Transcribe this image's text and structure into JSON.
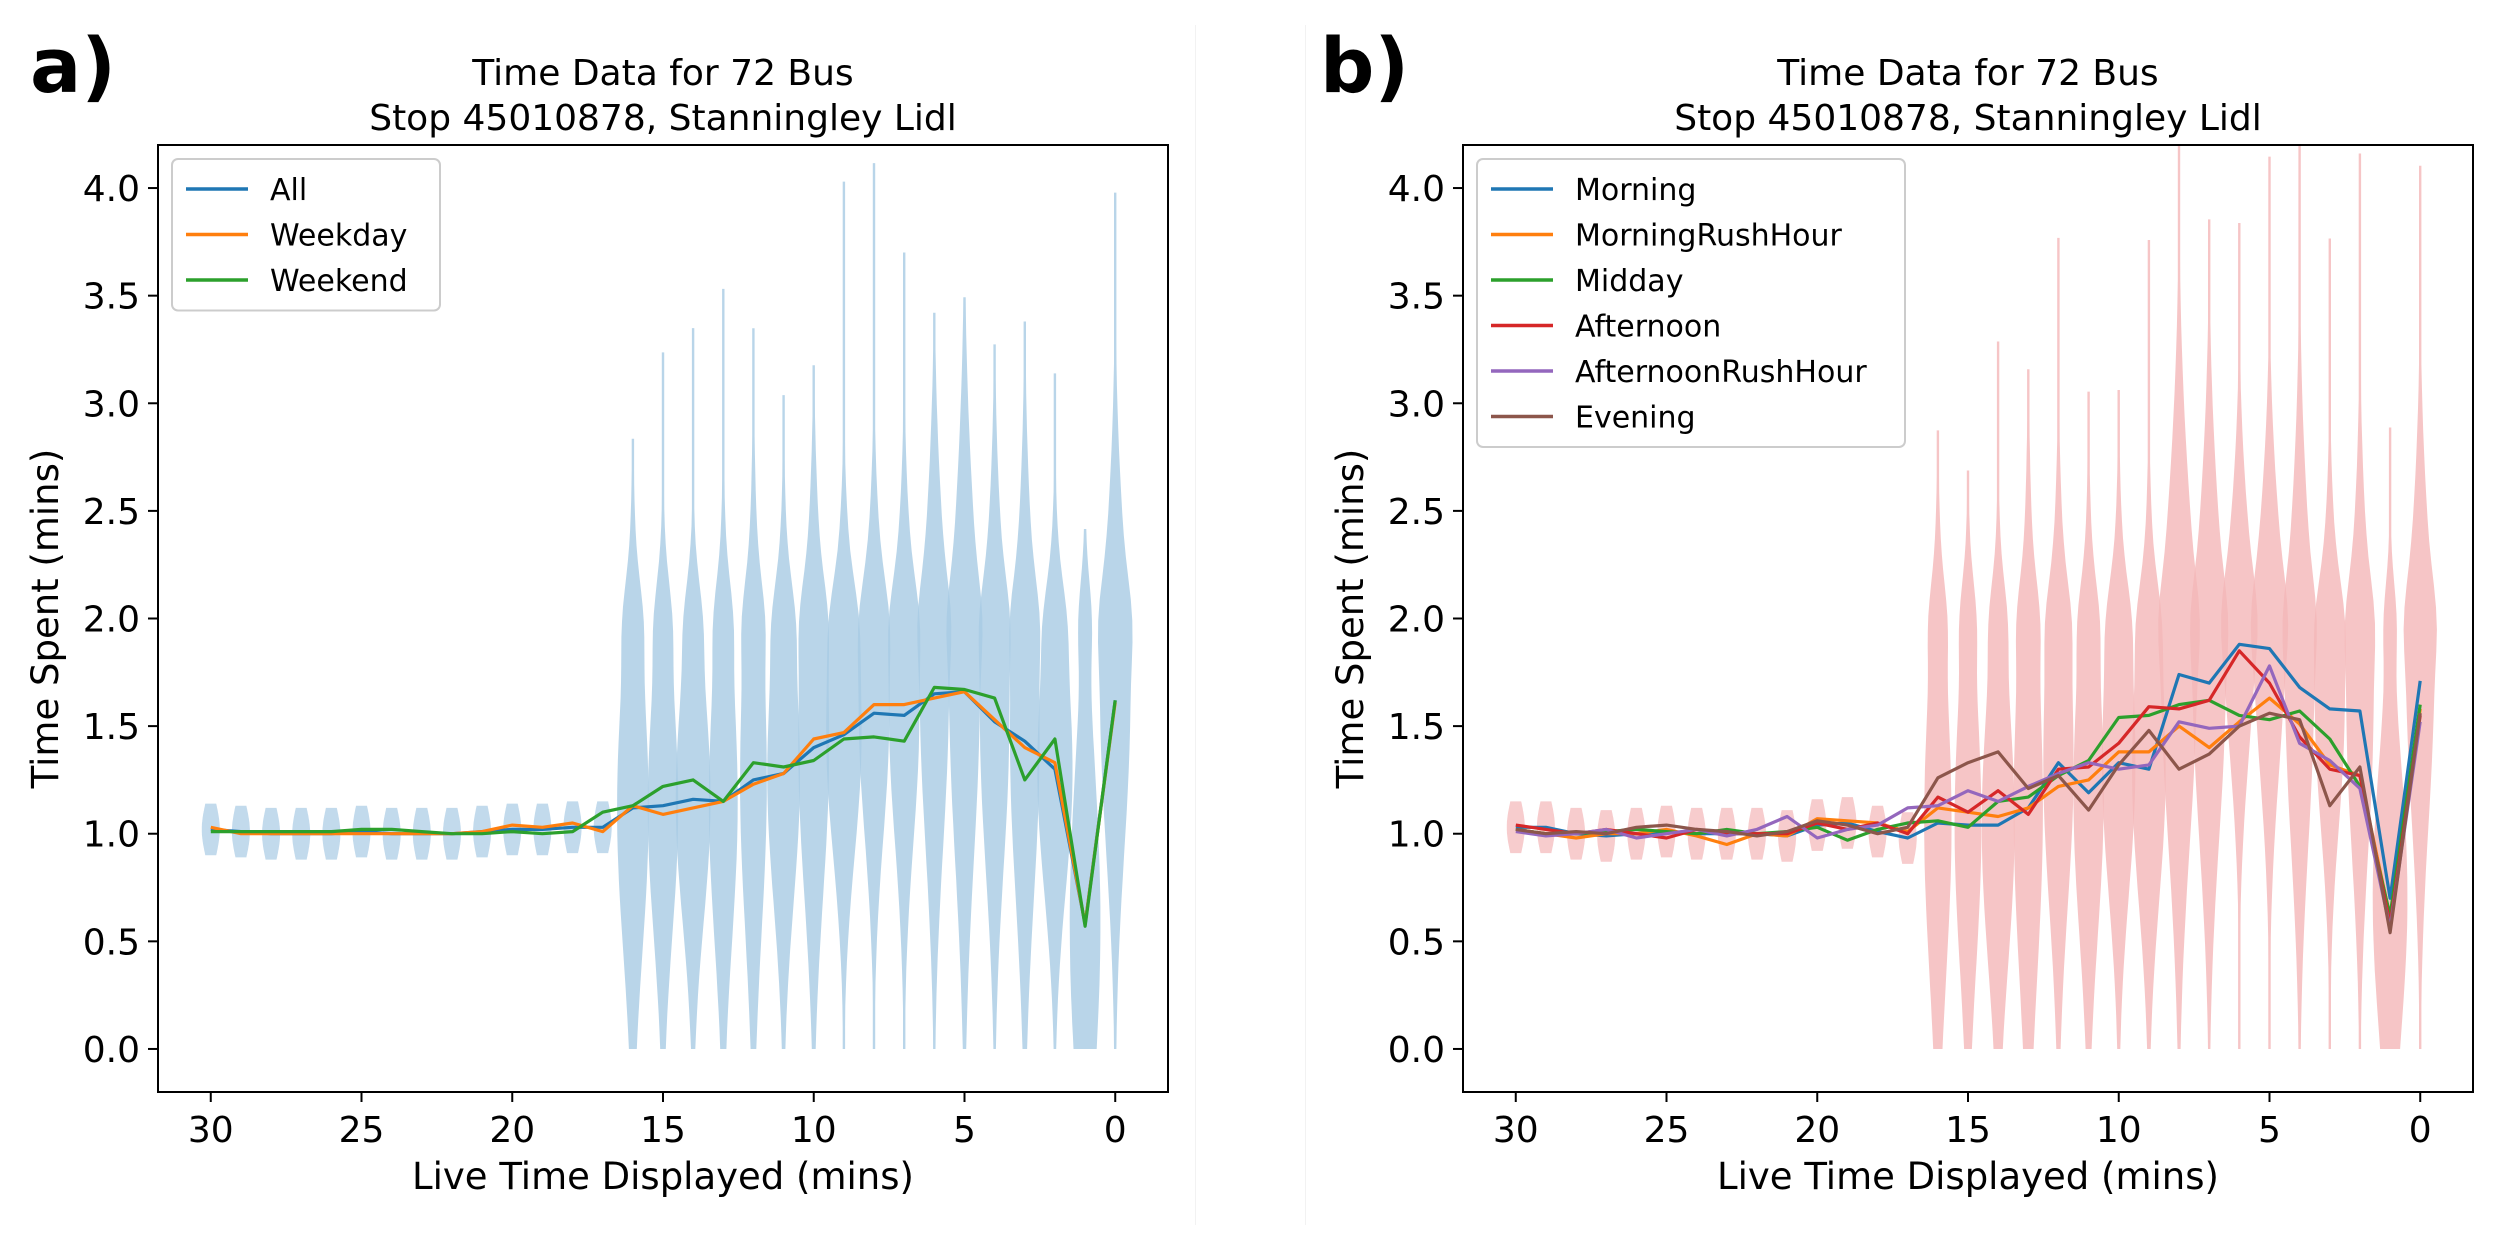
{
  "panels": [
    {
      "panel_label": "a)",
      "violin_color": "#a8cbe4",
      "chart_data": {
        "type": "line",
        "title": "Time Data for 72 Bus\nStop 45010878, Stanningley Lidl",
        "xlabel": "Live Time Displayed (mins)",
        "ylabel": "Time Spent (mins)",
        "xlim": [
          31.75,
          -1.75
        ],
        "ylim": [
          -0.2,
          4.2
        ],
        "x_ticks": [
          30,
          25,
          20,
          15,
          10,
          5,
          0
        ],
        "y_ticks": [
          0.0,
          0.5,
          1.0,
          1.5,
          2.0,
          2.5,
          3.0,
          3.5,
          4.0
        ],
        "legend_position": "upper-left",
        "x": [
          30,
          29,
          28,
          27,
          26,
          25,
          24,
          23,
          22,
          21,
          20,
          19,
          18,
          17,
          16,
          15,
          14,
          13,
          12,
          11,
          10,
          9,
          8,
          7,
          6,
          5,
          4,
          3,
          2,
          1,
          0
        ],
        "series": [
          {
            "name": "All",
            "color": "#1f77b4",
            "values": [
              1.02,
              1.01,
              1.0,
              1.0,
              1.0,
              1.01,
              1.0,
              1.0,
              1.0,
              1.01,
              1.02,
              1.02,
              1.03,
              1.03,
              1.12,
              1.13,
              1.16,
              1.15,
              1.25,
              1.28,
              1.4,
              1.46,
              1.56,
              1.55,
              1.65,
              1.66,
              1.52,
              1.43,
              1.3,
              0.58,
              1.62
            ]
          },
          {
            "name": "Weekday",
            "color": "#ff7f0e",
            "values": [
              1.03,
              1.0,
              1.0,
              1.0,
              1.0,
              1.0,
              1.0,
              1.0,
              1.0,
              1.01,
              1.04,
              1.03,
              1.05,
              1.01,
              1.13,
              1.09,
              1.12,
              1.15,
              1.23,
              1.28,
              1.44,
              1.47,
              1.6,
              1.6,
              1.63,
              1.66,
              1.53,
              1.4,
              1.33,
              0.58,
              1.61
            ]
          },
          {
            "name": "Weekend",
            "color": "#2ca02c",
            "values": [
              1.01,
              1.01,
              1.01,
              1.01,
              1.01,
              1.02,
              1.02,
              1.01,
              1.0,
              1.0,
              1.01,
              1.0,
              1.01,
              1.1,
              1.13,
              1.22,
              1.25,
              1.15,
              1.33,
              1.31,
              1.34,
              1.44,
              1.45,
              1.43,
              1.68,
              1.67,
              1.63,
              1.25,
              1.44,
              0.57,
              1.62
            ]
          }
        ]
      }
    },
    {
      "panel_label": "b)",
      "violin_color": "#f4b6b8",
      "chart_data": {
        "type": "line",
        "title": "Time Data for 72 Bus\nStop 45010878, Stanningley Lidl",
        "xlabel": "Live Time Displayed (mins)",
        "ylabel": "Time Spent (mins)",
        "xlim": [
          31.75,
          -1.75
        ],
        "ylim": [
          -0.2,
          4.2
        ],
        "x_ticks": [
          30,
          25,
          20,
          15,
          10,
          5,
          0
        ],
        "y_ticks": [
          0.0,
          0.5,
          1.0,
          1.5,
          2.0,
          2.5,
          3.0,
          3.5,
          4.0
        ],
        "legend_position": "upper-left",
        "x": [
          30,
          29,
          28,
          27,
          26,
          25,
          24,
          23,
          22,
          21,
          20,
          19,
          18,
          17,
          16,
          15,
          14,
          13,
          12,
          11,
          10,
          9,
          8,
          7,
          6,
          5,
          4,
          3,
          2,
          1,
          0
        ],
        "series": [
          {
            "name": "Morning",
            "color": "#1f77b4",
            "values": [
              1.03,
              1.03,
              1.0,
              0.99,
              1.0,
              1.01,
              1.0,
              1.0,
              1.0,
              0.99,
              1.04,
              1.05,
              1.01,
              0.98,
              1.05,
              1.04,
              1.04,
              1.12,
              1.33,
              1.19,
              1.33,
              1.3,
              1.74,
              1.7,
              1.88,
              1.86,
              1.68,
              1.58,
              1.57,
              0.7,
              1.71
            ]
          },
          {
            "name": "MorningRushHour",
            "color": "#ff7f0e",
            "values": [
              1.02,
              1.0,
              0.98,
              1.0,
              1.0,
              1.02,
              0.99,
              0.95,
              1.0,
              0.99,
              1.07,
              1.06,
              1.05,
              1.01,
              1.12,
              1.1,
              1.08,
              1.12,
              1.22,
              1.25,
              1.38,
              1.38,
              1.5,
              1.4,
              1.52,
              1.63,
              1.51,
              1.32,
              1.27,
              0.61,
              1.58
            ]
          },
          {
            "name": "Midday",
            "color": "#2ca02c",
            "values": [
              1.02,
              1.0,
              1.0,
              1.01,
              1.02,
              1.01,
              1.0,
              1.02,
              1.0,
              1.01,
              1.03,
              0.97,
              1.02,
              1.05,
              1.06,
              1.03,
              1.15,
              1.17,
              1.27,
              1.34,
              1.54,
              1.55,
              1.6,
              1.62,
              1.55,
              1.53,
              1.57,
              1.44,
              1.22,
              0.62,
              1.6
            ]
          },
          {
            "name": "Afternoon",
            "color": "#d62728",
            "values": [
              1.04,
              1.02,
              1.0,
              1.02,
              1.0,
              0.98,
              1.02,
              1.0,
              1.0,
              1.0,
              1.05,
              1.02,
              1.05,
              1.0,
              1.17,
              1.1,
              1.2,
              1.09,
              1.3,
              1.31,
              1.42,
              1.59,
              1.58,
              1.62,
              1.85,
              1.7,
              1.45,
              1.3,
              1.27,
              0.58,
              1.55
            ]
          },
          {
            "name": "AfternoonRushHour",
            "color": "#9467bd",
            "values": [
              1.01,
              0.99,
              1.0,
              1.02,
              0.98,
              1.0,
              1.02,
              0.99,
              1.02,
              1.08,
              0.98,
              1.02,
              1.04,
              1.12,
              1.13,
              1.2,
              1.15,
              1.22,
              1.28,
              1.33,
              1.3,
              1.32,
              1.52,
              1.49,
              1.5,
              1.78,
              1.42,
              1.34,
              1.21,
              0.56,
              1.52
            ]
          },
          {
            "name": "Evening",
            "color": "#8c564b",
            "values": [
              1.02,
              1.0,
              1.01,
              1.0,
              1.03,
              1.04,
              1.02,
              1.01,
              0.99,
              1.01,
              1.06,
              1.04,
              1.0,
              1.03,
              1.26,
              1.33,
              1.38,
              1.21,
              1.27,
              1.11,
              1.32,
              1.48,
              1.3,
              1.37,
              1.5,
              1.56,
              1.53,
              1.13,
              1.31,
              0.54,
              1.56
            ]
          }
        ]
      }
    }
  ]
}
